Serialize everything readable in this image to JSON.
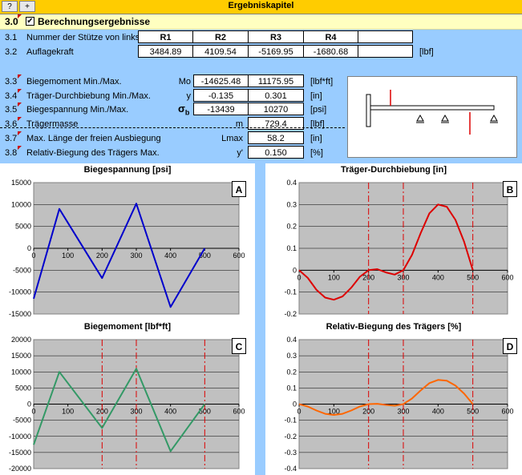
{
  "toolbar": {
    "help_label": "?",
    "add_label": "+",
    "title": "Ergebniskapitel"
  },
  "section": {
    "number": "3.0",
    "checked": "✔",
    "title": "Berechnungsergebnisse"
  },
  "rows": [
    {
      "num": "3.1",
      "label": "Nummer der Stütze von links"
    },
    {
      "num": "3.2",
      "label": "Auflagekraft"
    },
    {
      "num": "3.3",
      "label": "Biegemoment Min./Max."
    },
    {
      "num": "3.4",
      "label": "Träger-Durchbiebung Min./Max."
    },
    {
      "num": "3.5",
      "label": "Biegespannung Min./Max."
    },
    {
      "num": "3.6",
      "label": "Trägermasse"
    },
    {
      "num": "3.7",
      "label": "Max. Länge der freien Ausbiegung"
    },
    {
      "num": "3.8",
      "label": "Relativ-Biegung des Trägers Max."
    }
  ],
  "supports": {
    "headers": [
      "R1",
      "R2",
      "R3",
      "R4"
    ],
    "values": [
      "3484.89",
      "4109.54",
      "-5169.95",
      "-1680.68"
    ],
    "unit": "[lbf]"
  },
  "results": {
    "moment": {
      "symbol": "Mo",
      "min": "-14625.48",
      "max": "11175.95",
      "unit": "[lbf*ft]"
    },
    "deflection": {
      "symbol": "y",
      "min": "-0.135",
      "max": "0.301",
      "unit": "[in]"
    },
    "stress": {
      "symbol": "σ",
      "symbol_sub": "b",
      "min": "-13439",
      "max": "10270",
      "unit": "[psi]"
    },
    "mass": {
      "symbol": "m",
      "value": "729.4",
      "unit": "[lbf]"
    },
    "free_length": {
      "symbol": "Lmax",
      "value": "58.2",
      "unit": "[in]"
    },
    "relative": {
      "symbol": "y'",
      "value": "0.150",
      "unit": "[%]"
    }
  },
  "chart_data": [
    {
      "id": "A",
      "type": "line",
      "title": "Biegespannung  [psi]",
      "xlim": [
        0,
        600
      ],
      "ylim": [
        -15000,
        15000
      ],
      "xstep": 100,
      "ystep": 5000,
      "color": "#0000cc",
      "vlines": [],
      "x": [
        0,
        75,
        200,
        300,
        400,
        500
      ],
      "y": [
        -11500,
        9000,
        -6800,
        10200,
        -13400,
        0
      ]
    },
    {
      "id": "B",
      "type": "line",
      "title": "Träger-Durchbiebung  [in]",
      "xlim": [
        0,
        600
      ],
      "ylim": [
        -0.2,
        0.4
      ],
      "xstep": 100,
      "ystep": 0.1,
      "color": "#dd0000",
      "vlines": [
        200,
        300,
        500
      ],
      "x": [
        0,
        25,
        50,
        75,
        100,
        125,
        150,
        175,
        200,
        225,
        250,
        275,
        300,
        325,
        350,
        375,
        400,
        425,
        450,
        475,
        500
      ],
      "y": [
        0,
        -0.035,
        -0.09,
        -0.125,
        -0.135,
        -0.12,
        -0.08,
        -0.03,
        0,
        0.005,
        -0.01,
        -0.02,
        0,
        0.07,
        0.17,
        0.26,
        0.3,
        0.29,
        0.23,
        0.13,
        0
      ]
    },
    {
      "id": "C",
      "type": "line",
      "title": "Biegemoment  [lbf*ft]",
      "xlim": [
        0,
        600
      ],
      "ylim": [
        -20000,
        20000
      ],
      "xstep": 100,
      "ystep": 5000,
      "color": "#339966",
      "vlines": [
        200,
        300,
        500
      ],
      "x": [
        0,
        75,
        200,
        300,
        400,
        500
      ],
      "y": [
        -12600,
        10000,
        -7400,
        11000,
        -14600,
        0
      ]
    },
    {
      "id": "D",
      "type": "line",
      "title": "Relativ-Biegung des Trägers  [%]",
      "xlim": [
        0,
        600
      ],
      "ylim": [
        -0.4,
        0.4
      ],
      "xstep": 100,
      "ystep": 0.1,
      "color": "#ff6600",
      "vlines": [
        200,
        300,
        500
      ],
      "x": [
        0,
        25,
        50,
        75,
        100,
        125,
        150,
        175,
        200,
        225,
        250,
        275,
        300,
        325,
        350,
        375,
        400,
        425,
        450,
        475,
        500
      ],
      "y": [
        0,
        -0.015,
        -0.04,
        -0.06,
        -0.067,
        -0.06,
        -0.04,
        -0.015,
        0,
        0.002,
        -0.005,
        -0.01,
        0,
        0.035,
        0.085,
        0.13,
        0.15,
        0.145,
        0.115,
        0.065,
        0
      ]
    }
  ]
}
